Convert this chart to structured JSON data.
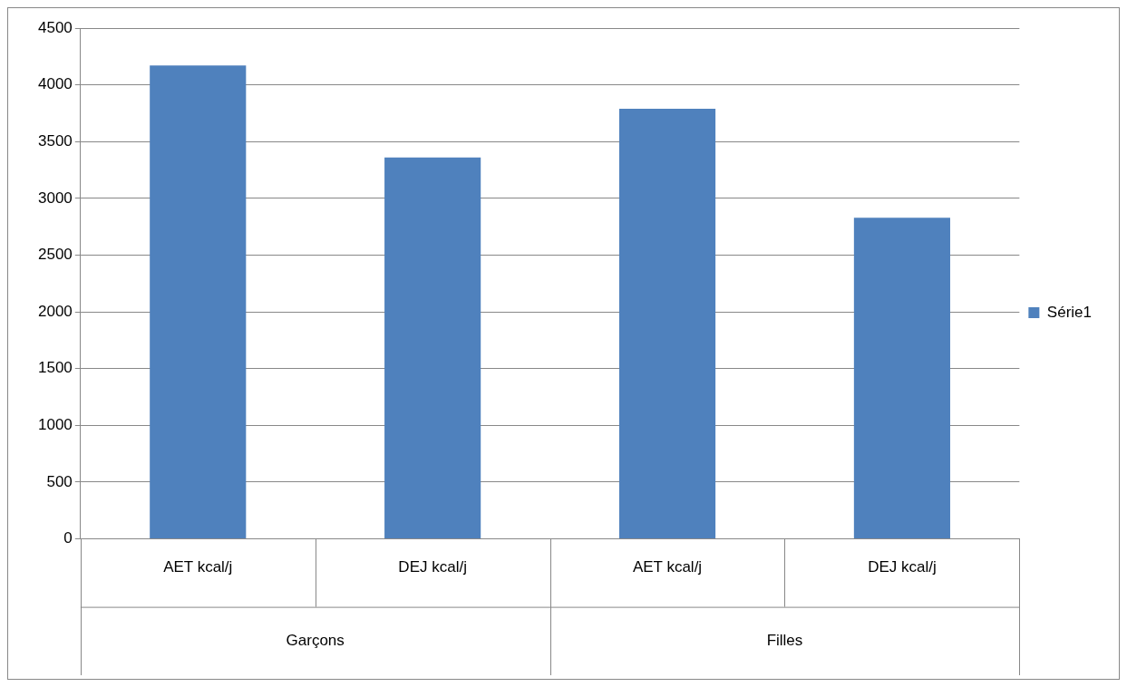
{
  "chart_data": {
    "type": "bar",
    "categories": [
      "AET kcal/j",
      "DEJ kcal/j",
      "AET kcal/j",
      "DEJ kcal/j"
    ],
    "series": [
      {
        "name": "Série1",
        "color": "#4f81bd",
        "values": [
          4170,
          3360,
          3790,
          2830
        ]
      }
    ],
    "annotations": [
      "Garçons",
      "Filles"
    ],
    "ylim": [
      0,
      4500
    ],
    "yticks": [
      0,
      500,
      1000,
      1500,
      2000,
      2500,
      3000,
      3500,
      4000,
      4500
    ],
    "grid": "y",
    "legend": "right"
  }
}
